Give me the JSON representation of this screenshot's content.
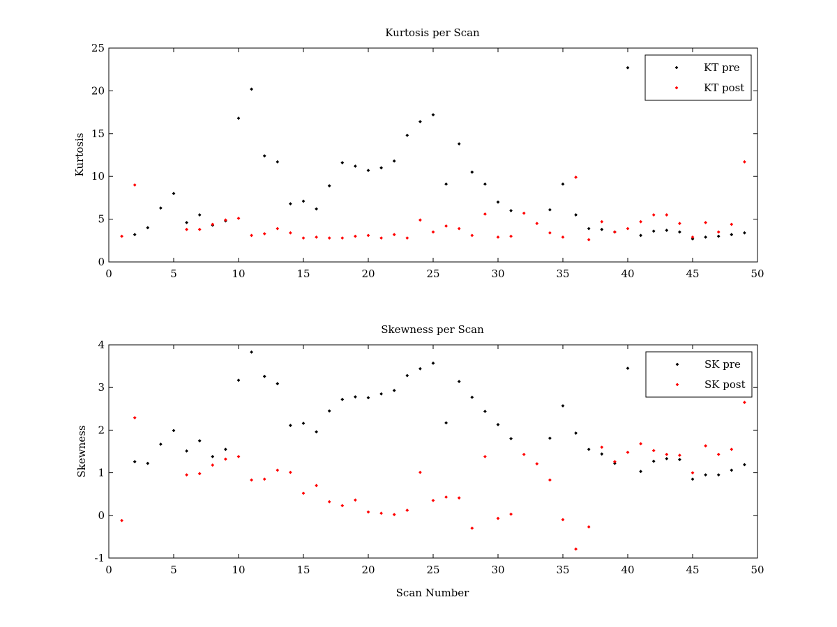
{
  "chart_data": [
    {
      "type": "scatter",
      "title": "Kurtosis per Scan",
      "xlabel": "",
      "ylabel": "Kurtosis",
      "xlim": [
        0,
        50
      ],
      "ylim": [
        0,
        25
      ],
      "xticks": [
        0,
        5,
        10,
        15,
        20,
        25,
        30,
        35,
        40,
        45,
        50
      ],
      "yticks": [
        0,
        5,
        10,
        15,
        20,
        25
      ],
      "grid": false,
      "legend": "top-right",
      "series": [
        {
          "name": "KT pre",
          "color": "#000000",
          "points": [
            [
              2,
              3.2
            ],
            [
              3,
              4.0
            ],
            [
              4,
              6.3
            ],
            [
              5,
              8.0
            ],
            [
              6,
              4.6
            ],
            [
              7,
              5.5
            ],
            [
              8,
              4.3
            ],
            [
              9,
              4.8
            ],
            [
              10,
              16.8
            ],
            [
              11,
              20.2
            ],
            [
              12,
              12.4
            ],
            [
              13,
              11.7
            ],
            [
              14,
              6.8
            ],
            [
              15,
              7.1
            ],
            [
              16,
              6.2
            ],
            [
              17,
              8.9
            ],
            [
              18,
              11.6
            ],
            [
              19,
              11.2
            ],
            [
              20,
              10.7
            ],
            [
              21,
              11.0
            ],
            [
              22,
              11.8
            ],
            [
              23,
              14.8
            ],
            [
              24,
              16.4
            ],
            [
              25,
              17.2
            ],
            [
              26,
              9.1
            ],
            [
              27,
              13.8
            ],
            [
              28,
              10.5
            ],
            [
              29,
              9.1
            ],
            [
              30,
              7.0
            ],
            [
              31,
              6.0
            ],
            [
              34,
              6.1
            ],
            [
              35,
              9.1
            ],
            [
              36,
              5.5
            ],
            [
              37,
              3.9
            ],
            [
              38,
              3.8
            ],
            [
              39,
              3.5
            ],
            [
              40,
              22.7
            ],
            [
              41,
              3.1
            ],
            [
              42,
              3.6
            ],
            [
              43,
              3.7
            ],
            [
              44,
              3.5
            ],
            [
              45,
              2.7
            ],
            [
              46,
              2.9
            ],
            [
              47,
              3.0
            ],
            [
              48,
              3.2
            ],
            [
              49,
              3.4
            ]
          ]
        },
        {
          "name": "KT post",
          "color": "#ff0000",
          "points": [
            [
              1,
              3.0
            ],
            [
              2,
              9.0
            ],
            [
              6,
              3.8
            ],
            [
              7,
              3.8
            ],
            [
              8,
              4.4
            ],
            [
              9,
              4.9
            ],
            [
              10,
              5.1
            ],
            [
              11,
              3.1
            ],
            [
              12,
              3.3
            ],
            [
              13,
              3.9
            ],
            [
              14,
              3.4
            ],
            [
              15,
              2.8
            ],
            [
              16,
              2.9
            ],
            [
              17,
              2.8
            ],
            [
              18,
              2.8
            ],
            [
              19,
              3.0
            ],
            [
              20,
              3.1
            ],
            [
              21,
              2.8
            ],
            [
              22,
              3.2
            ],
            [
              23,
              2.8
            ],
            [
              24,
              4.9
            ],
            [
              25,
              3.5
            ],
            [
              26,
              4.2
            ],
            [
              27,
              3.9
            ],
            [
              28,
              3.1
            ],
            [
              29,
              5.6
            ],
            [
              30,
              2.9
            ],
            [
              31,
              3.0
            ],
            [
              32,
              5.7
            ],
            [
              33,
              4.5
            ],
            [
              34,
              3.4
            ],
            [
              35,
              2.9
            ],
            [
              36,
              9.9
            ],
            [
              37,
              2.6
            ],
            [
              38,
              4.7
            ],
            [
              39,
              3.5
            ],
            [
              40,
              3.9
            ],
            [
              41,
              4.7
            ],
            [
              42,
              5.5
            ],
            [
              43,
              5.5
            ],
            [
              44,
              4.5
            ],
            [
              45,
              2.9
            ],
            [
              46,
              4.6
            ],
            [
              47,
              3.5
            ],
            [
              48,
              4.4
            ],
            [
              49,
              11.7
            ]
          ]
        }
      ]
    },
    {
      "type": "scatter",
      "title": "Skewness per Scan",
      "xlabel": "Scan Number",
      "ylabel": "Skewness",
      "xlim": [
        0,
        50
      ],
      "ylim": [
        -1,
        4
      ],
      "xticks": [
        0,
        5,
        10,
        15,
        20,
        25,
        30,
        35,
        40,
        45,
        50
      ],
      "yticks": [
        -1,
        0,
        1,
        2,
        3,
        4
      ],
      "grid": false,
      "legend": "top-right",
      "series": [
        {
          "name": "SK pre",
          "color": "#000000",
          "points": [
            [
              2,
              1.26
            ],
            [
              3,
              1.22
            ],
            [
              4,
              1.67
            ],
            [
              5,
              1.99
            ],
            [
              6,
              1.51
            ],
            [
              7,
              1.75
            ],
            [
              8,
              1.38
            ],
            [
              9,
              1.55
            ],
            [
              10,
              3.17
            ],
            [
              11,
              3.83
            ],
            [
              12,
              3.26
            ],
            [
              13,
              3.09
            ],
            [
              14,
              2.11
            ],
            [
              15,
              2.16
            ],
            [
              16,
              1.96
            ],
            [
              17,
              2.45
            ],
            [
              18,
              2.72
            ],
            [
              19,
              2.78
            ],
            [
              20,
              2.76
            ],
            [
              21,
              2.85
            ],
            [
              22,
              2.93
            ],
            [
              23,
              3.28
            ],
            [
              24,
              3.44
            ],
            [
              25,
              3.57
            ],
            [
              26,
              2.17
            ],
            [
              27,
              3.14
            ],
            [
              28,
              2.77
            ],
            [
              29,
              2.44
            ],
            [
              30,
              2.13
            ],
            [
              31,
              1.8
            ],
            [
              34,
              1.81
            ],
            [
              35,
              2.57
            ],
            [
              36,
              1.93
            ],
            [
              37,
              1.55
            ],
            [
              38,
              1.44
            ],
            [
              39,
              1.22
            ],
            [
              40,
              3.45
            ],
            [
              41,
              1.03
            ],
            [
              42,
              1.27
            ],
            [
              43,
              1.33
            ],
            [
              44,
              1.31
            ],
            [
              45,
              0.85
            ],
            [
              46,
              0.95
            ],
            [
              47,
              0.95
            ],
            [
              48,
              1.06
            ],
            [
              49,
              1.19
            ]
          ]
        },
        {
          "name": "SK post",
          "color": "#ff0000",
          "points": [
            [
              1,
              -0.12
            ],
            [
              2,
              2.29
            ],
            [
              6,
              0.95
            ],
            [
              7,
              0.98
            ],
            [
              8,
              1.18
            ],
            [
              9,
              1.32
            ],
            [
              10,
              1.38
            ],
            [
              11,
              0.83
            ],
            [
              12,
              0.85
            ],
            [
              13,
              1.06
            ],
            [
              14,
              1.01
            ],
            [
              15,
              0.52
            ],
            [
              16,
              0.7
            ],
            [
              17,
              0.32
            ],
            [
              18,
              0.23
            ],
            [
              19,
              0.36
            ],
            [
              20,
              0.08
            ],
            [
              21,
              0.05
            ],
            [
              22,
              0.02
            ],
            [
              23,
              0.12
            ],
            [
              24,
              1.01
            ],
            [
              25,
              0.35
            ],
            [
              26,
              0.43
            ],
            [
              27,
              0.41
            ],
            [
              28,
              -0.3
            ],
            [
              29,
              1.38
            ],
            [
              30,
              -0.07
            ],
            [
              31,
              0.03
            ],
            [
              32,
              1.43
            ],
            [
              33,
              1.21
            ],
            [
              34,
              0.83
            ],
            [
              35,
              -0.1
            ],
            [
              36,
              -0.79
            ],
            [
              37,
              -0.27
            ],
            [
              38,
              1.6
            ],
            [
              39,
              1.26
            ],
            [
              40,
              1.48
            ],
            [
              41,
              1.68
            ],
            [
              42,
              1.52
            ],
            [
              43,
              1.43
            ],
            [
              44,
              1.41
            ],
            [
              45,
              1.0
            ],
            [
              46,
              1.63
            ],
            [
              47,
              1.43
            ],
            [
              48,
              1.55
            ],
            [
              49,
              2.65
            ]
          ]
        }
      ]
    }
  ]
}
